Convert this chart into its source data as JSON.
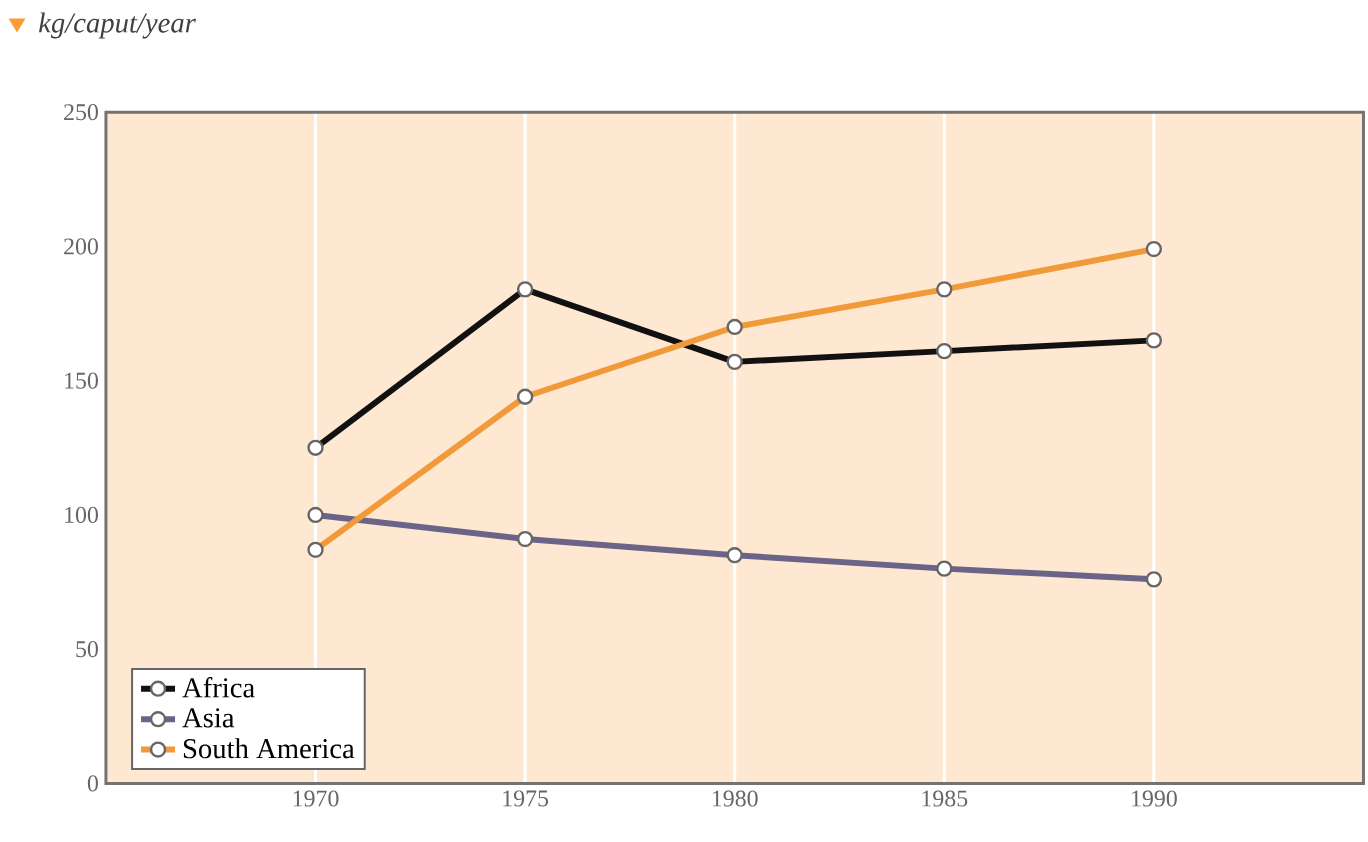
{
  "chart_data": {
    "type": "line",
    "title": "kg/caput/year",
    "x": [
      1970,
      1975,
      1980,
      1985,
      1990
    ],
    "series": [
      {
        "name": "Africa",
        "color": "#111111",
        "values": [
          125,
          184,
          157,
          161,
          165
        ]
      },
      {
        "name": "Asia",
        "color": "#6a6488",
        "values": [
          100,
          91,
          85,
          80,
          76
        ]
      },
      {
        "name": "South America",
        "color": "#f09a3a",
        "values": [
          87,
          144,
          170,
          184,
          199
        ]
      }
    ],
    "xlim": [
      1965,
      1995
    ],
    "ylim": [
      0,
      250
    ],
    "xticks": [
      1970,
      1975,
      1980,
      1985,
      1990
    ],
    "yticks": [
      0,
      50,
      100,
      150,
      200,
      250
    ],
    "grid": "x",
    "legend": "bottom left",
    "marker": "circle",
    "line_style": "solid"
  }
}
